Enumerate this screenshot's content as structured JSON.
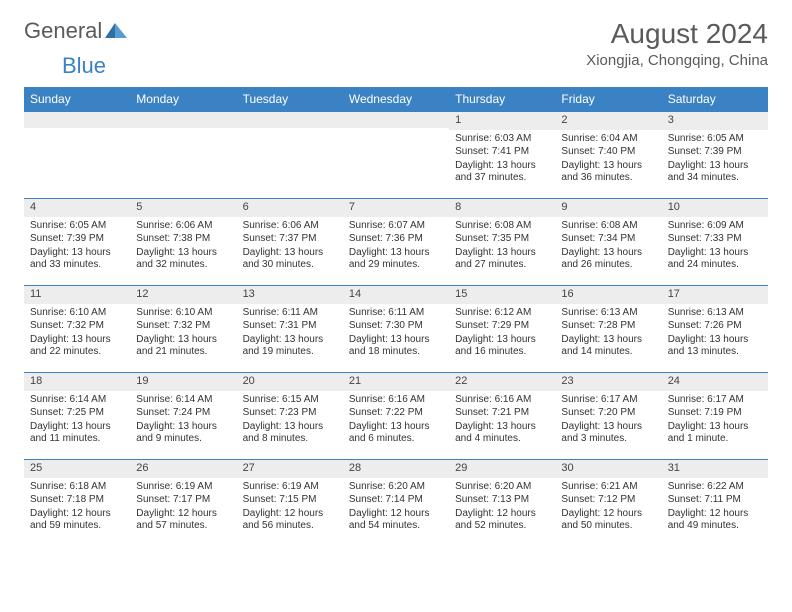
{
  "logo": {
    "text1": "General",
    "text2": "Blue"
  },
  "title": "August 2024",
  "location": "Xiongjia, Chongqing, China",
  "colors": {
    "header_bg": "#3b82c4",
    "header_text": "#ffffff",
    "daynum_bg": "#ededed",
    "row_border": "#3b82c4",
    "body_text": "#333333",
    "title_text": "#5a5a5a"
  },
  "typography": {
    "title_fontsize": 28,
    "location_fontsize": 15,
    "dayheader_fontsize": 12,
    "cell_fontsize": 10
  },
  "day_headers": [
    "Sunday",
    "Monday",
    "Tuesday",
    "Wednesday",
    "Thursday",
    "Friday",
    "Saturday"
  ],
  "weeks": [
    [
      {
        "n": "",
        "sunrise": "",
        "sunset": "",
        "daylight": ""
      },
      {
        "n": "",
        "sunrise": "",
        "sunset": "",
        "daylight": ""
      },
      {
        "n": "",
        "sunrise": "",
        "sunset": "",
        "daylight": ""
      },
      {
        "n": "",
        "sunrise": "",
        "sunset": "",
        "daylight": ""
      },
      {
        "n": "1",
        "sunrise": "Sunrise: 6:03 AM",
        "sunset": "Sunset: 7:41 PM",
        "daylight": "Daylight: 13 hours and 37 minutes."
      },
      {
        "n": "2",
        "sunrise": "Sunrise: 6:04 AM",
        "sunset": "Sunset: 7:40 PM",
        "daylight": "Daylight: 13 hours and 36 minutes."
      },
      {
        "n": "3",
        "sunrise": "Sunrise: 6:05 AM",
        "sunset": "Sunset: 7:39 PM",
        "daylight": "Daylight: 13 hours and 34 minutes."
      }
    ],
    [
      {
        "n": "4",
        "sunrise": "Sunrise: 6:05 AM",
        "sunset": "Sunset: 7:39 PM",
        "daylight": "Daylight: 13 hours and 33 minutes."
      },
      {
        "n": "5",
        "sunrise": "Sunrise: 6:06 AM",
        "sunset": "Sunset: 7:38 PM",
        "daylight": "Daylight: 13 hours and 32 minutes."
      },
      {
        "n": "6",
        "sunrise": "Sunrise: 6:06 AM",
        "sunset": "Sunset: 7:37 PM",
        "daylight": "Daylight: 13 hours and 30 minutes."
      },
      {
        "n": "7",
        "sunrise": "Sunrise: 6:07 AM",
        "sunset": "Sunset: 7:36 PM",
        "daylight": "Daylight: 13 hours and 29 minutes."
      },
      {
        "n": "8",
        "sunrise": "Sunrise: 6:08 AM",
        "sunset": "Sunset: 7:35 PM",
        "daylight": "Daylight: 13 hours and 27 minutes."
      },
      {
        "n": "9",
        "sunrise": "Sunrise: 6:08 AM",
        "sunset": "Sunset: 7:34 PM",
        "daylight": "Daylight: 13 hours and 26 minutes."
      },
      {
        "n": "10",
        "sunrise": "Sunrise: 6:09 AM",
        "sunset": "Sunset: 7:33 PM",
        "daylight": "Daylight: 13 hours and 24 minutes."
      }
    ],
    [
      {
        "n": "11",
        "sunrise": "Sunrise: 6:10 AM",
        "sunset": "Sunset: 7:32 PM",
        "daylight": "Daylight: 13 hours and 22 minutes."
      },
      {
        "n": "12",
        "sunrise": "Sunrise: 6:10 AM",
        "sunset": "Sunset: 7:32 PM",
        "daylight": "Daylight: 13 hours and 21 minutes."
      },
      {
        "n": "13",
        "sunrise": "Sunrise: 6:11 AM",
        "sunset": "Sunset: 7:31 PM",
        "daylight": "Daylight: 13 hours and 19 minutes."
      },
      {
        "n": "14",
        "sunrise": "Sunrise: 6:11 AM",
        "sunset": "Sunset: 7:30 PM",
        "daylight": "Daylight: 13 hours and 18 minutes."
      },
      {
        "n": "15",
        "sunrise": "Sunrise: 6:12 AM",
        "sunset": "Sunset: 7:29 PM",
        "daylight": "Daylight: 13 hours and 16 minutes."
      },
      {
        "n": "16",
        "sunrise": "Sunrise: 6:13 AM",
        "sunset": "Sunset: 7:28 PM",
        "daylight": "Daylight: 13 hours and 14 minutes."
      },
      {
        "n": "17",
        "sunrise": "Sunrise: 6:13 AM",
        "sunset": "Sunset: 7:26 PM",
        "daylight": "Daylight: 13 hours and 13 minutes."
      }
    ],
    [
      {
        "n": "18",
        "sunrise": "Sunrise: 6:14 AM",
        "sunset": "Sunset: 7:25 PM",
        "daylight": "Daylight: 13 hours and 11 minutes."
      },
      {
        "n": "19",
        "sunrise": "Sunrise: 6:14 AM",
        "sunset": "Sunset: 7:24 PM",
        "daylight": "Daylight: 13 hours and 9 minutes."
      },
      {
        "n": "20",
        "sunrise": "Sunrise: 6:15 AM",
        "sunset": "Sunset: 7:23 PM",
        "daylight": "Daylight: 13 hours and 8 minutes."
      },
      {
        "n": "21",
        "sunrise": "Sunrise: 6:16 AM",
        "sunset": "Sunset: 7:22 PM",
        "daylight": "Daylight: 13 hours and 6 minutes."
      },
      {
        "n": "22",
        "sunrise": "Sunrise: 6:16 AM",
        "sunset": "Sunset: 7:21 PM",
        "daylight": "Daylight: 13 hours and 4 minutes."
      },
      {
        "n": "23",
        "sunrise": "Sunrise: 6:17 AM",
        "sunset": "Sunset: 7:20 PM",
        "daylight": "Daylight: 13 hours and 3 minutes."
      },
      {
        "n": "24",
        "sunrise": "Sunrise: 6:17 AM",
        "sunset": "Sunset: 7:19 PM",
        "daylight": "Daylight: 13 hours and 1 minute."
      }
    ],
    [
      {
        "n": "25",
        "sunrise": "Sunrise: 6:18 AM",
        "sunset": "Sunset: 7:18 PM",
        "daylight": "Daylight: 12 hours and 59 minutes."
      },
      {
        "n": "26",
        "sunrise": "Sunrise: 6:19 AM",
        "sunset": "Sunset: 7:17 PM",
        "daylight": "Daylight: 12 hours and 57 minutes."
      },
      {
        "n": "27",
        "sunrise": "Sunrise: 6:19 AM",
        "sunset": "Sunset: 7:15 PM",
        "daylight": "Daylight: 12 hours and 56 minutes."
      },
      {
        "n": "28",
        "sunrise": "Sunrise: 6:20 AM",
        "sunset": "Sunset: 7:14 PM",
        "daylight": "Daylight: 12 hours and 54 minutes."
      },
      {
        "n": "29",
        "sunrise": "Sunrise: 6:20 AM",
        "sunset": "Sunset: 7:13 PM",
        "daylight": "Daylight: 12 hours and 52 minutes."
      },
      {
        "n": "30",
        "sunrise": "Sunrise: 6:21 AM",
        "sunset": "Sunset: 7:12 PM",
        "daylight": "Daylight: 12 hours and 50 minutes."
      },
      {
        "n": "31",
        "sunrise": "Sunrise: 6:22 AM",
        "sunset": "Sunset: 7:11 PM",
        "daylight": "Daylight: 12 hours and 49 minutes."
      }
    ]
  ]
}
